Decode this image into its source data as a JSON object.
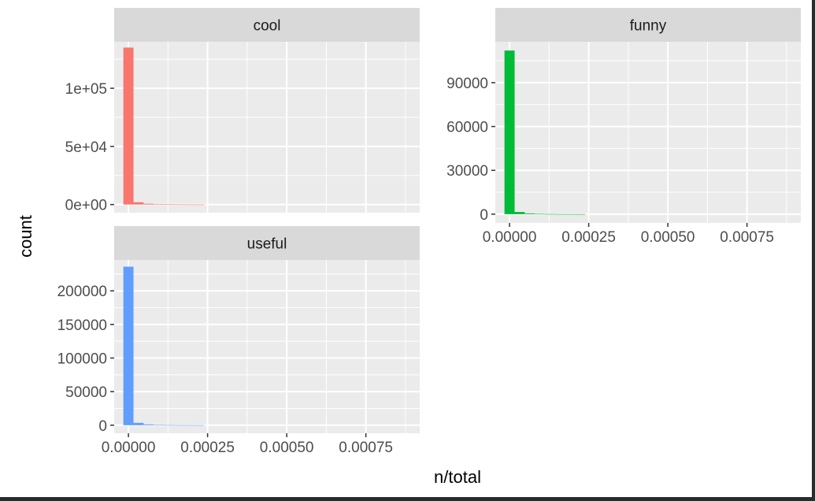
{
  "chart_data": {
    "type": "bar",
    "chart_subtype": "faceted histogram",
    "xlabel": "n/total",
    "ylabel": "count",
    "grid": true,
    "x_ticks": [
      "0.00000",
      "0.00025",
      "0.00050",
      "0.00075"
    ],
    "x_tick_values": [
      0,
      0.00025,
      0.0005,
      0.00075
    ],
    "xlim": [
      -4.5e-05,
      0.00092
    ],
    "bin_width": 3.2e-05,
    "bin_starts": [
      -1.6e-05,
      1.6e-05,
      4.8e-05,
      8e-05,
      0.000112,
      0.000144,
      0.000176,
      0.000208
    ],
    "facets": [
      {
        "label": "cool",
        "color": "#F8766D",
        "ylim": [
          -7000,
          140000
        ],
        "y_ticks": [
          "0e+00",
          "5e+04",
          "1e+05"
        ],
        "y_tick_values": [
          0,
          50000,
          100000
        ],
        "values": [
          135000,
          2000,
          700,
          300,
          150,
          80,
          40,
          20
        ]
      },
      {
        "label": "funny",
        "color": "#00BA38",
        "ylim": [
          -6000,
          118000
        ],
        "y_ticks": [
          "0",
          "30000",
          "60000",
          "90000"
        ],
        "y_tick_values": [
          0,
          30000,
          60000,
          90000
        ],
        "values": [
          112000,
          1500,
          500,
          200,
          100,
          50,
          25,
          10
        ]
      },
      {
        "label": "useful",
        "color": "#619CFF",
        "ylim": [
          -12000,
          246000
        ],
        "y_ticks": [
          "0",
          "50000",
          "100000",
          "150000",
          "200000"
        ],
        "y_tick_values": [
          0,
          50000,
          100000,
          150000,
          200000
        ],
        "values": [
          236000,
          3500,
          1200,
          500,
          250,
          120,
          60,
          30
        ]
      }
    ]
  }
}
